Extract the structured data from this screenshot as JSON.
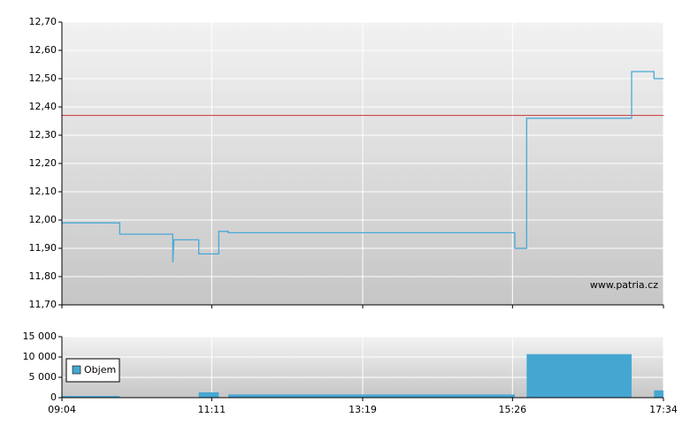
{
  "chart_data": [
    {
      "type": "line",
      "x": [
        544,
        593,
        593,
        638,
        638,
        639,
        660,
        660,
        677,
        677,
        685,
        685,
        928,
        928,
        938,
        938,
        1027,
        1027,
        1046,
        1046,
        1054
      ],
      "values": [
        11.99,
        11.99,
        11.95,
        11.95,
        11.85,
        11.93,
        11.93,
        11.88,
        11.88,
        11.96,
        11.96,
        11.955,
        11.955,
        11.9,
        11.9,
        12.36,
        12.36,
        12.525,
        12.525,
        12.5,
        12.5
      ],
      "color": "#4aa8d8",
      "reference_line": 12.37,
      "reference_color": "#cc3333",
      "xlim": [
        544,
        1054
      ],
      "ylim": [
        11.7,
        12.7
      ],
      "yticks": [
        {
          "value": 11.7,
          "label": "11,70"
        },
        {
          "value": 11.8,
          "label": "11,80"
        },
        {
          "value": 11.9,
          "label": "11,90"
        },
        {
          "value": 12.0,
          "label": "12,00"
        },
        {
          "value": 12.1,
          "label": "12,10"
        },
        {
          "value": 12.2,
          "label": "12,20"
        },
        {
          "value": 12.3,
          "label": "12,30"
        },
        {
          "value": 12.4,
          "label": "12,40"
        },
        {
          "value": 12.5,
          "label": "12,50"
        },
        {
          "value": 12.6,
          "label": "12,60"
        },
        {
          "value": 12.7,
          "label": "12,70"
        }
      ],
      "annotation": "www.patria.cz",
      "grid": true
    },
    {
      "type": "area",
      "x": [
        544,
        593,
        593,
        660,
        660,
        677,
        677,
        685,
        685,
        928,
        928,
        938,
        938,
        1027,
        1027,
        1046,
        1046,
        1054
      ],
      "series": [
        {
          "name": "Objem",
          "color": "#46a6d2",
          "values": [
            400,
            400,
            0,
            0,
            1300,
            1300,
            0,
            0,
            800,
            800,
            0,
            0,
            10700,
            10700,
            0,
            0,
            1800,
            1800
          ]
        }
      ],
      "xlim": [
        544,
        1054
      ],
      "xticks": [
        {
          "value": 544,
          "label": "09:04"
        },
        {
          "value": 671,
          "label": "11:11"
        },
        {
          "value": 799,
          "label": "13:19"
        },
        {
          "value": 926,
          "label": "15:26"
        },
        {
          "value": 1054,
          "label": "17:34"
        }
      ],
      "ylim": [
        0,
        15000
      ],
      "yticks": [
        0,
        {
          "value": 5000,
          "label": "5 000"
        },
        {
          "value": 10000,
          "label": "10 000"
        },
        {
          "value": 15000,
          "label": "15 000"
        }
      ],
      "grid": true,
      "legend": "left"
    }
  ]
}
